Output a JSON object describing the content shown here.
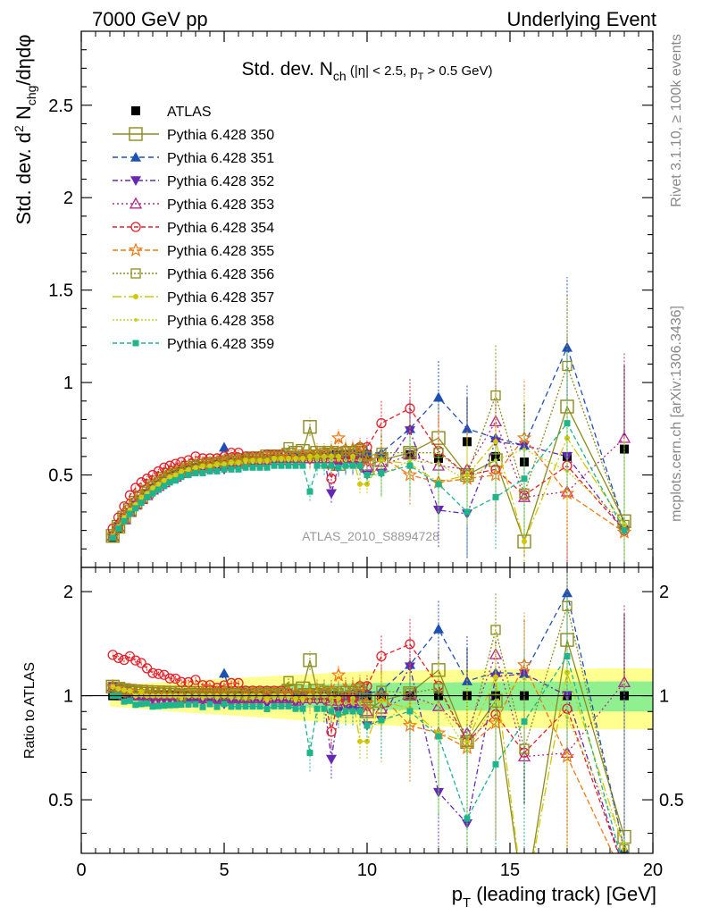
{
  "header": {
    "left": "7000 GeV pp",
    "right": "Underlying Event"
  },
  "side_text": {
    "rivet": "Rivet 3.1.10, ≥ 100k events",
    "mcplots": "mcplots.cern.ch [arXiv:1306.3436]"
  },
  "chart_data": {
    "type": "scatter",
    "title": "Std. dev. N_ch (|η| < 2.5, p_T > 0.5 GeV)",
    "analysis_label": "ATLAS_2010_S8894728",
    "xlabel": "p_T (leading track) [GeV]",
    "ylabel": "Std. dev. d²N_chg/dηdφ",
    "ratio_ylabel": "Ratio to ATLAS",
    "xlim": [
      0,
      20
    ],
    "ylim": [
      0,
      2.9
    ],
    "ratio_ylim": [
      0.35,
      2.35
    ],
    "xticks": [
      0,
      5,
      10,
      15,
      20
    ],
    "yticks": [
      0.5,
      1,
      1.5,
      2,
      2.5
    ],
    "ratio_yticks": [
      0.5,
      1,
      2
    ],
    "legend_position": "top-left",
    "x": [
      1.1,
      1.3,
      1.5,
      1.7,
      1.9,
      2.1,
      2.3,
      2.5,
      2.7,
      2.9,
      3.1,
      3.3,
      3.5,
      3.75,
      4.0,
      4.25,
      4.5,
      4.75,
      5.0,
      5.25,
      5.5,
      5.75,
      6.0,
      6.25,
      6.5,
      6.75,
      7.0,
      7.25,
      7.5,
      7.75,
      8.0,
      8.25,
      8.5,
      8.75,
      9.0,
      9.25,
      9.5,
      9.75,
      10.0,
      10.5,
      11.5,
      12.5,
      13.5,
      14.5,
      15.5,
      17.0,
      19.0
    ],
    "series": [
      {
        "name": "ATLAS",
        "color": "#000000",
        "marker": "square-filled",
        "values": [
          0.16,
          0.21,
          0.26,
          0.3,
          0.34,
          0.37,
          0.4,
          0.43,
          0.45,
          0.47,
          0.49,
          0.5,
          0.52,
          0.53,
          0.54,
          0.55,
          0.55,
          0.56,
          0.56,
          0.57,
          0.57,
          0.58,
          0.58,
          0.58,
          0.59,
          0.59,
          0.59,
          0.59,
          0.6,
          0.6,
          0.6,
          0.6,
          0.6,
          0.61,
          0.61,
          0.61,
          0.61,
          0.61,
          0.61,
          0.6,
          0.61,
          0.59,
          0.68,
          0.6,
          0.57,
          0.6,
          0.64
        ]
      },
      {
        "name": "Pythia 6.428 350",
        "color": "#8c8c1e",
        "marker": "square-open-large",
        "dash": "",
        "values": [
          0.17,
          0.22,
          0.27,
          0.31,
          0.35,
          0.38,
          0.41,
          0.44,
          0.46,
          0.48,
          0.5,
          0.51,
          0.52,
          0.54,
          0.55,
          0.55,
          0.56,
          0.56,
          0.57,
          0.58,
          0.58,
          0.58,
          0.59,
          0.59,
          0.6,
          0.6,
          0.6,
          0.61,
          0.62,
          0.63,
          0.76,
          0.62,
          0.6,
          0.62,
          0.56,
          0.6,
          0.58,
          0.62,
          0.55,
          0.58,
          0.62,
          0.7,
          0.5,
          0.58,
          0.14,
          0.87,
          0.25
        ]
      },
      {
        "name": "Pythia 6.428 351",
        "color": "#1e50b4",
        "marker": "triangle-up-filled",
        "dash": "6,4",
        "values": [
          0.17,
          0.22,
          0.27,
          0.31,
          0.34,
          0.37,
          0.4,
          0.43,
          0.45,
          0.47,
          0.49,
          0.5,
          0.52,
          0.53,
          0.54,
          0.55,
          0.55,
          0.56,
          0.65,
          0.57,
          0.57,
          0.58,
          0.58,
          0.58,
          0.59,
          0.59,
          0.6,
          0.6,
          0.6,
          0.6,
          0.6,
          0.6,
          0.61,
          0.61,
          0.61,
          0.61,
          0.62,
          0.62,
          0.62,
          0.62,
          0.75,
          0.92,
          0.75,
          0.7,
          0.66,
          1.19,
          0.23
        ]
      },
      {
        "name": "Pythia 6.428 352",
        "color": "#6428b4",
        "marker": "triangle-down-filled",
        "dash": "6,3,2,3",
        "values": [
          0.17,
          0.22,
          0.27,
          0.3,
          0.34,
          0.37,
          0.39,
          0.42,
          0.44,
          0.46,
          0.48,
          0.49,
          0.5,
          0.51,
          0.52,
          0.53,
          0.53,
          0.53,
          0.53,
          0.54,
          0.55,
          0.55,
          0.56,
          0.56,
          0.56,
          0.57,
          0.57,
          0.57,
          0.57,
          0.58,
          0.58,
          0.58,
          0.58,
          0.4,
          0.55,
          0.56,
          0.56,
          0.55,
          0.5,
          0.51,
          0.74,
          0.31,
          0.29,
          0.68,
          0.66,
          0.6,
          0.2
        ]
      },
      {
        "name": "Pythia 6.428 353",
        "color": "#b4288c",
        "marker": "triangle-up-open",
        "dash": "2,3",
        "values": [
          0.17,
          0.22,
          0.26,
          0.3,
          0.34,
          0.37,
          0.39,
          0.42,
          0.44,
          0.46,
          0.48,
          0.49,
          0.51,
          0.52,
          0.53,
          0.54,
          0.54,
          0.55,
          0.55,
          0.56,
          0.56,
          0.57,
          0.57,
          0.57,
          0.58,
          0.58,
          0.58,
          0.58,
          0.58,
          0.59,
          0.59,
          0.59,
          0.59,
          0.59,
          0.59,
          0.59,
          0.59,
          0.59,
          0.55,
          0.55,
          0.61,
          0.55,
          0.53,
          0.79,
          0.38,
          0.41,
          0.7
        ]
      },
      {
        "name": "Pythia 6.428 354",
        "color": "#e61e28",
        "marker": "circle-open",
        "dash": "5,3",
        "values": [
          0.21,
          0.27,
          0.33,
          0.39,
          0.43,
          0.46,
          0.48,
          0.5,
          0.52,
          0.54,
          0.55,
          0.56,
          0.57,
          0.58,
          0.6,
          0.59,
          0.59,
          0.59,
          0.6,
          0.62,
          0.62,
          0.6,
          0.6,
          0.6,
          0.61,
          0.61,
          0.61,
          0.6,
          0.6,
          0.6,
          0.6,
          0.61,
          0.6,
          0.48,
          0.6,
          0.6,
          0.6,
          0.65,
          0.65,
          0.78,
          0.86,
          0.63,
          0.5,
          0.53,
          0.39,
          0.55,
          0.2
        ]
      },
      {
        "name": "Pythia 6.428 355",
        "color": "#f07814",
        "marker": "star-open",
        "dash": "6,3",
        "values": [
          0.17,
          0.22,
          0.27,
          0.31,
          0.35,
          0.38,
          0.41,
          0.44,
          0.46,
          0.48,
          0.5,
          0.51,
          0.52,
          0.54,
          0.55,
          0.56,
          0.56,
          0.57,
          0.57,
          0.58,
          0.58,
          0.58,
          0.59,
          0.59,
          0.59,
          0.6,
          0.6,
          0.6,
          0.61,
          0.61,
          0.61,
          0.62,
          0.62,
          0.63,
          0.7,
          0.64,
          0.64,
          0.65,
          0.58,
          0.6,
          0.5,
          0.46,
          0.48,
          0.5,
          0.7,
          0.4,
          0.19
        ]
      },
      {
        "name": "Pythia 6.428 356",
        "color": "#8c8c1e",
        "marker": "square-open",
        "dash": "2,2",
        "values": [
          0.17,
          0.22,
          0.27,
          0.31,
          0.35,
          0.38,
          0.41,
          0.44,
          0.46,
          0.48,
          0.5,
          0.51,
          0.52,
          0.54,
          0.55,
          0.56,
          0.56,
          0.57,
          0.57,
          0.58,
          0.58,
          0.58,
          0.59,
          0.59,
          0.6,
          0.6,
          0.6,
          0.65,
          0.6,
          0.61,
          0.61,
          0.61,
          0.62,
          0.62,
          0.62,
          0.63,
          0.63,
          0.64,
          0.6,
          0.62,
          0.62,
          0.62,
          0.5,
          0.93,
          0.4,
          1.09,
          0.23
        ]
      },
      {
        "name": "Pythia 6.428 357",
        "color": "#d2c800",
        "marker": "dot",
        "dash": "10,3,2,3",
        "values": [
          0.17,
          0.22,
          0.27,
          0.31,
          0.34,
          0.38,
          0.4,
          0.43,
          0.45,
          0.47,
          0.49,
          0.5,
          0.52,
          0.53,
          0.54,
          0.55,
          0.55,
          0.56,
          0.56,
          0.57,
          0.57,
          0.58,
          0.58,
          0.58,
          0.58,
          0.59,
          0.59,
          0.59,
          0.59,
          0.59,
          0.6,
          0.6,
          0.6,
          0.6,
          0.6,
          0.55,
          0.6,
          0.45,
          0.45,
          0.58,
          0.56,
          0.46,
          0.5,
          0.68,
          0.14,
          0.7,
          0.23
        ]
      },
      {
        "name": "Pythia 6.428 358",
        "color": "#c8d228",
        "marker": "dot-small",
        "dash": "2,2",
        "values": [
          0.17,
          0.22,
          0.27,
          0.31,
          0.34,
          0.37,
          0.4,
          0.43,
          0.45,
          0.47,
          0.49,
          0.5,
          0.51,
          0.53,
          0.54,
          0.54,
          0.55,
          0.55,
          0.56,
          0.56,
          0.56,
          0.57,
          0.57,
          0.57,
          0.57,
          0.58,
          0.58,
          0.58,
          0.58,
          0.58,
          0.58,
          0.58,
          0.58,
          0.58,
          0.58,
          0.58,
          0.58,
          0.58,
          0.5,
          0.5,
          0.58,
          0.56,
          0.47,
          0.58,
          0.64,
          0.52,
          0.24
        ]
      },
      {
        "name": "Pythia 6.428 359",
        "color": "#1eb48c",
        "marker": "square-filled-small",
        "dash": "5,3",
        "values": [
          0.16,
          0.21,
          0.25,
          0.29,
          0.32,
          0.35,
          0.38,
          0.4,
          0.42,
          0.44,
          0.46,
          0.47,
          0.49,
          0.5,
          0.51,
          0.51,
          0.52,
          0.52,
          0.53,
          0.53,
          0.53,
          0.54,
          0.54,
          0.54,
          0.54,
          0.55,
          0.55,
          0.55,
          0.55,
          0.55,
          0.41,
          0.55,
          0.55,
          0.55,
          0.54,
          0.55,
          0.55,
          0.55,
          0.5,
          0.51,
          0.55,
          0.45,
          0.3,
          0.38,
          0.48,
          0.78,
          0.2
        ]
      }
    ],
    "ratio_band": {
      "inner_color": "#90f090",
      "outer_color": "#ffff90",
      "inner_halfwidth": [
        0.03,
        0.1
      ],
      "outer_halfwidth": [
        0.07,
        0.2
      ]
    }
  }
}
